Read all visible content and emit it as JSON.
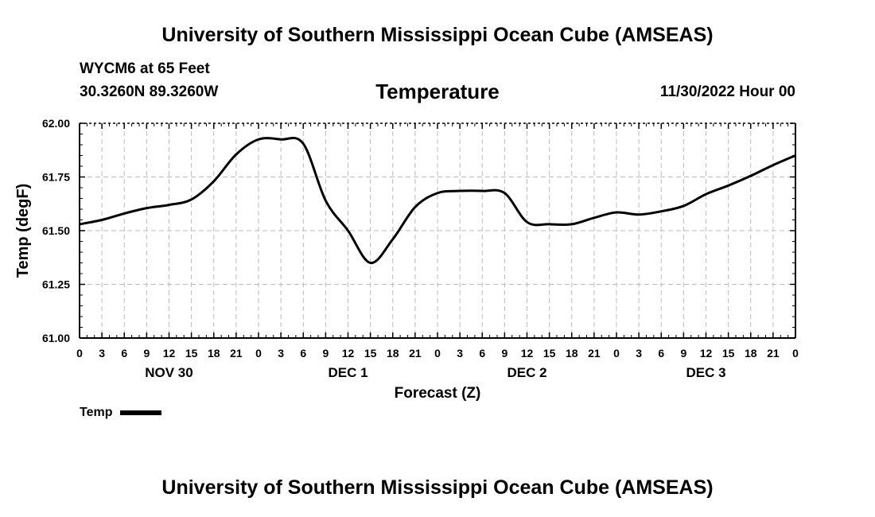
{
  "header": {
    "title": "University of Southern Mississippi Ocean Cube (AMSEAS)",
    "station": "WYCM6 at 65 Feet",
    "coords": "30.3260N  89.3260W",
    "variable": "Temperature",
    "datetime": "11/30/2022 Hour 00"
  },
  "footer": {
    "title": "University of Southern Mississippi Ocean Cube (AMSEAS)"
  },
  "legend": {
    "label": "Temp"
  },
  "colors": {
    "line": "#000000",
    "grid": "#bbbbbb",
    "background": "#ffffff"
  },
  "chart_data": {
    "type": "line",
    "title": "Temperature",
    "xlabel": "Forecast (Z)",
    "ylabel": "Temp (degF)",
    "ylim": [
      61.0,
      62.0
    ],
    "xlim": [
      0,
      96
    ],
    "grid": true,
    "legend_position": "bottom-left",
    "yticks": [
      61.0,
      61.25,
      61.5,
      61.75,
      62.0
    ],
    "ytick_labels": [
      "61.00",
      "61.25",
      "61.50",
      "61.75",
      "62.00"
    ],
    "xticks": [
      0,
      3,
      6,
      9,
      12,
      15,
      18,
      21,
      24,
      27,
      30,
      33,
      36,
      39,
      42,
      45,
      48,
      51,
      54,
      57,
      60,
      63,
      66,
      69,
      72,
      75,
      78,
      81,
      84,
      87,
      90,
      93,
      96
    ],
    "xtick_labels": [
      "0",
      "3",
      "6",
      "9",
      "12",
      "15",
      "18",
      "21",
      "0",
      "3",
      "6",
      "9",
      "12",
      "15",
      "18",
      "21",
      "0",
      "3",
      "6",
      "9",
      "12",
      "15",
      "18",
      "21",
      "0",
      "3",
      "6",
      "9",
      "12",
      "15",
      "18",
      "21",
      "0"
    ],
    "day_labels": [
      {
        "label": "NOV 30",
        "x": 12
      },
      {
        "label": "DEC 1",
        "x": 36
      },
      {
        "label": "DEC 2",
        "x": 60
      },
      {
        "label": "DEC 3",
        "x": 84
      }
    ],
    "series": [
      {
        "name": "Temp",
        "x": [
          0,
          3,
          6,
          9,
          12,
          15,
          18,
          21,
          24,
          27,
          30,
          33,
          36,
          39,
          42,
          45,
          48,
          51,
          54,
          57,
          60,
          63,
          66,
          69,
          72,
          75,
          78,
          81,
          84,
          87,
          90,
          93,
          96
        ],
        "values": [
          61.53,
          61.55,
          61.58,
          61.605,
          61.62,
          61.645,
          61.73,
          61.855,
          61.925,
          61.925,
          61.905,
          61.64,
          61.5,
          61.35,
          61.46,
          61.61,
          61.675,
          61.685,
          61.685,
          61.675,
          61.54,
          61.53,
          61.53,
          61.56,
          61.585,
          61.575,
          61.59,
          61.615,
          61.67,
          61.71,
          61.755,
          61.805,
          61.85
        ]
      }
    ]
  }
}
